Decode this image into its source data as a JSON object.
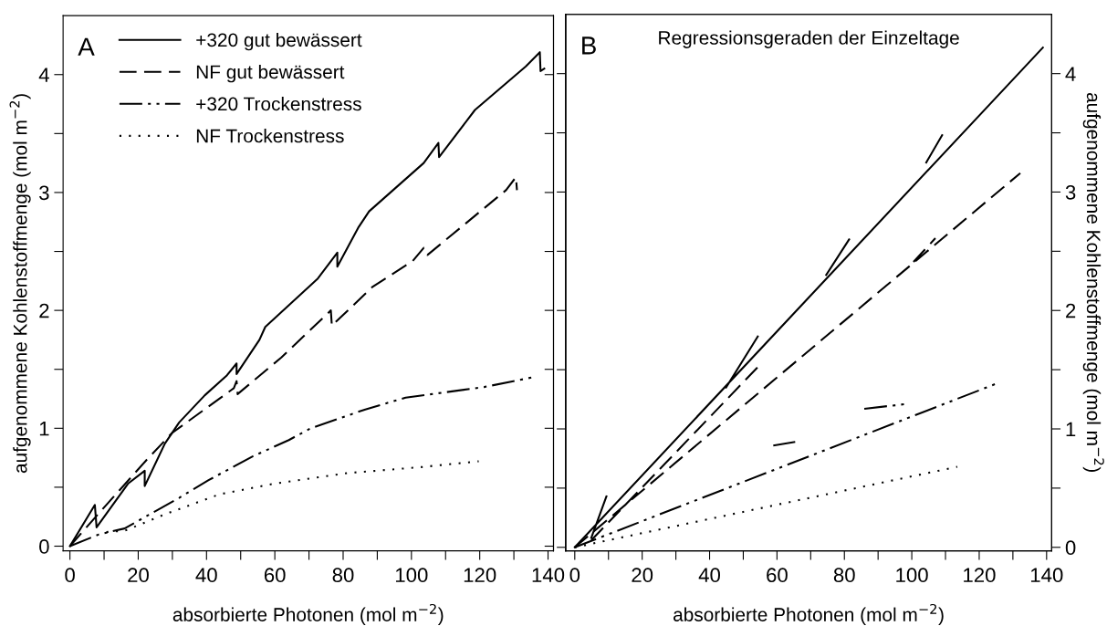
{
  "chart_data": [
    {
      "type": "line",
      "xlabel": "absorbierte Photonen (mol m$^{−2}$)",
      "ylabel": "aufgenommene Kohlenstoffmenge (mol m$^{−2}$)",
      "annotations": [
        "A"
      ],
      "legend": "top left",
      "xlim": [
        -2,
        141.6
      ],
      "ylim": [
        -0.04,
        4.5
      ],
      "xticks": [
        0,
        {
          "value": 10,
          "label": null
        },
        20,
        {
          "value": 30,
          "label": null
        },
        40,
        {
          "value": 50,
          "label": null
        },
        60,
        {
          "value": 70,
          "label": null
        },
        80,
        {
          "value": 90,
          "label": null
        },
        100,
        {
          "value": 110,
          "label": null
        },
        120,
        {
          "value": 130,
          "label": null
        },
        140
      ],
      "yticks": [
        0,
        {
          "value": 0.5,
          "label": null
        },
        1,
        {
          "value": 1.5,
          "label": null
        },
        2,
        {
          "value": 2.5,
          "label": null
        },
        3,
        {
          "value": 3.5,
          "label": null
        },
        4
      ],
      "series": [
        {
          "name": "+320 gut bewässert",
          "color": "#000000",
          "line_style": "solid",
          "x": [
            0,
            7.3,
            7.8,
            17,
            21.9,
            21.9,
            27.8,
            32,
            39.5,
            46,
            48.8,
            48.8,
            55.5,
            57.2,
            72.6,
            78.3,
            78.3,
            84.4,
            87.6,
            103.6,
            107.9,
            108.1,
            118.6,
            133.5,
            137.6,
            137.8,
            138.9
          ],
          "values": [
            0,
            0.35,
            0.16,
            0.53,
            0.64,
            0.51,
            0.87,
            1.05,
            1.28,
            1.45,
            1.55,
            1.46,
            1.75,
            1.86,
            2.27,
            2.49,
            2.37,
            2.7,
            2.84,
            3.25,
            3.42,
            3.3,
            3.7,
            4.07,
            4.19,
            4.03,
            4.05
          ]
        },
        {
          "name": "NF gut bewässert",
          "color": "#000000",
          "line_style": "dashed",
          "x": [
            0,
            8.5,
            22.4,
            29.9,
            48,
            48.8,
            49.1,
            61.9,
            76.4,
            76.7,
            88.6,
            100.4,
            103.6,
            104.7,
            127.7,
            130.6,
            130.9
          ],
          "values": [
            0,
            0.28,
            0.73,
            0.96,
            1.34,
            1.4,
            1.29,
            1.6,
            2.0,
            1.87,
            2.2,
            2.42,
            2.53,
            2.47,
            3.02,
            3.13,
            3.02
          ]
        },
        {
          "name": "+320 Trockenstress",
          "color": "#000000",
          "line_style": "dashdotdot",
          "x": [
            0,
            8.5,
            16,
            32,
            40.6,
            53.4,
            64.1,
            70.5,
            86.5,
            98.3,
            121.3,
            135.1
          ],
          "values": [
            0,
            0.1,
            0.15,
            0.41,
            0.56,
            0.76,
            0.9,
            1.0,
            1.16,
            1.26,
            1.35,
            1.43
          ]
        },
        {
          "name": "NF Trockenstress",
          "color": "#000000",
          "line_style": "dotted",
          "x": [
            10.7,
            16,
            27.8,
            43.8,
            59.8,
            81.2,
            102.6,
            119.7
          ],
          "values": [
            0.12,
            0.13,
            0.27,
            0.44,
            0.53,
            0.62,
            0.67,
            0.72
          ]
        }
      ]
    },
    {
      "type": "line",
      "title": "Regressionsgeraden der Einzeltage",
      "xlabel": "absorbierte Photonen (mol m$^{−2}$)",
      "y2label": "aufgenommene Kohlenstoffmenge (mol m$^{−2}$)",
      "annotations": [
        "B"
      ],
      "xlim": [
        -2.7,
        141.5
      ],
      "y2lim": [
        -0.03,
        4.5
      ],
      "xticks": [
        0,
        {
          "value": 10,
          "label": null
        },
        20,
        {
          "value": 30,
          "label": null
        },
        40,
        {
          "value": 50,
          "label": null
        },
        60,
        {
          "value": 70,
          "label": null
        },
        80,
        {
          "value": 90,
          "label": null
        },
        100,
        {
          "value": 110,
          "label": null
        },
        120,
        {
          "value": 130,
          "label": null
        },
        140
      ],
      "y2ticks": [
        0,
        {
          "value": 0.5,
          "label": null
        },
        1,
        {
          "value": 1.5,
          "label": null
        },
        2,
        {
          "value": 2.5,
          "label": null
        },
        3,
        {
          "value": 3.5,
          "label": null
        },
        4
      ],
      "series": [
        {
          "color": "#000000",
          "line_style": "solid",
          "axis": "y2",
          "x": [
            0,
            138.9,
            null,
            4.9,
            9.4,
            null,
            44.9,
            54.3,
            null,
            74.6,
            81.4,
            null,
            104.3,
            109
          ],
          "values": [
            0,
            4.22,
            null,
            0.08,
            0.43,
            null,
            1.35,
            1.78,
            null,
            2.3,
            2.6,
            null,
            3.25,
            3.48
          ]
        },
        {
          "color": "#000000",
          "line_style": "dashed",
          "axis": "y2",
          "x": [
            0,
            132.2,
            null,
            4.9,
            54.6,
            null,
            100.5,
            107
          ],
          "values": [
            0,
            3.16,
            null,
            0.06,
            1.53,
            null,
            2.41,
            2.61
          ]
        },
        {
          "color": "#000000",
          "line_style": "dashdotdot",
          "axis": "y2",
          "x": [
            0,
            124.9,
            null,
            58.9,
            65.4,
            null,
            85.9,
            98.4
          ],
          "values": [
            0,
            1.38,
            null,
            0.86,
            0.89,
            null,
            1.17,
            1.21
          ]
        },
        {
          "color": "#000000",
          "line_style": "dotted",
          "axis": "y2",
          "x": [
            0,
            113.5
          ],
          "values": [
            0,
            0.68
          ]
        }
      ]
    }
  ]
}
